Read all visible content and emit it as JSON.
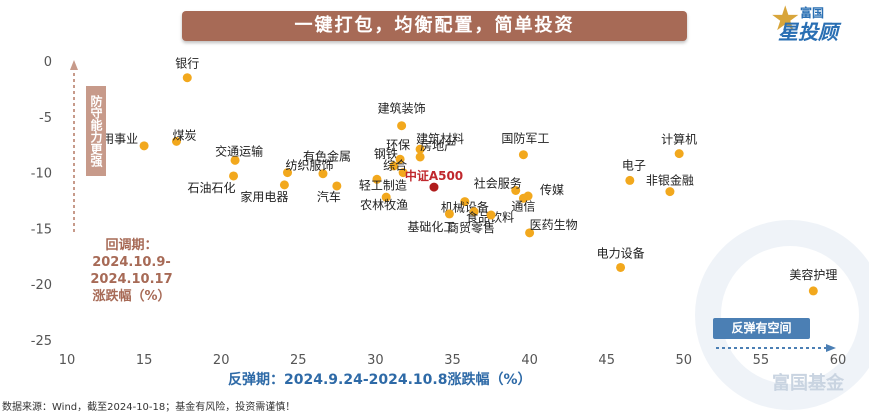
{
  "banner": {
    "title": "一键打包，均衡配置，简单投资"
  },
  "logo": {
    "line1": "富国",
    "line2": "星投顾"
  },
  "watermark": "富国基金",
  "y_axis_box": "防守能力更强",
  "y_axis_title": "回调期：2024.10.9-2024.10.17涨跌幅（%）",
  "x_axis_box": "反弹有空间",
  "x_axis_title": "反弹期：2024.9.24-2024.10.8涨跌幅（%）",
  "footer": "数据来源：Wind，截至2024-10-18；基金有风险，投资需谨慎！",
  "colors": {
    "point": "#f2a81d",
    "highlight": "#b01c1c",
    "highlight_label": "#c0282d",
    "banner": "#a76a56",
    "arrow": "#c79a8a",
    "x_arrow": "#4b7fb4"
  },
  "chart_data": {
    "type": "scatter",
    "xlim": [
      10,
      60
    ],
    "ylim": [
      -25,
      0
    ],
    "x_ticks": [
      10,
      15,
      20,
      25,
      30,
      35,
      40,
      45,
      50,
      55,
      60
    ],
    "y_ticks": [
      0,
      -5,
      -10,
      -15,
      -20,
      -25
    ],
    "grid": false,
    "points": [
      {
        "label": "银行",
        "x": 17.8,
        "y": -1.5
      },
      {
        "label": "建筑装饰",
        "x": 31.7,
        "y": -5.8
      },
      {
        "label": "建筑材料",
        "x": 32.9,
        "y": -7.9
      },
      {
        "label": "公用事业",
        "x": 15.0,
        "y": -7.6
      },
      {
        "label": "煤炭",
        "x": 17.1,
        "y": -7.2
      },
      {
        "label": "交通运输",
        "x": 20.9,
        "y": -8.9
      },
      {
        "label": "有色金属",
        "x": 26.6,
        "y": -10.1
      },
      {
        "label": "纺织服饰",
        "x": 24.3,
        "y": -10.0
      },
      {
        "label": "钢铁",
        "x": 31.2,
        "y": -9.4
      },
      {
        "label": "环保",
        "x": 31.6,
        "y": -8.8
      },
      {
        "label": "房地产",
        "x": 32.9,
        "y": -8.6
      },
      {
        "label": "综合",
        "x": 31.8,
        "y": -10.0
      },
      {
        "label": "国防军工",
        "x": 39.6,
        "y": -8.4
      },
      {
        "label": "计算机",
        "x": 49.7,
        "y": -8.3
      },
      {
        "label": "电子",
        "x": 46.5,
        "y": -10.7
      },
      {
        "label": "非银金融",
        "x": 49.1,
        "y": -11.7
      },
      {
        "label": "石油石化",
        "x": 20.8,
        "y": -10.3
      },
      {
        "label": "家用电器",
        "x": 24.1,
        "y": -11.1
      },
      {
        "label": "汽车",
        "x": 27.5,
        "y": -11.2
      },
      {
        "label": "轻工制造",
        "x": 30.1,
        "y": -10.6
      },
      {
        "label": "农林牧渔",
        "x": 30.7,
        "y": -12.2
      },
      {
        "label": "中证A500",
        "x": 33.8,
        "y": -11.3,
        "highlight": true
      },
      {
        "label": "社会服务",
        "x": 39.1,
        "y": -11.6
      },
      {
        "label": "传媒",
        "x": 39.9,
        "y": -12.1
      },
      {
        "label": "机械设备",
        "x": 35.8,
        "y": -12.6
      },
      {
        "label": "通信",
        "x": 39.6,
        "y": -12.3
      },
      {
        "label": "基础化工",
        "x": 34.8,
        "y": -13.7
      },
      {
        "label": "食品饮料",
        "x": 36.4,
        "y": -13.5
      },
      {
        "label": "商贸零售",
        "x": 37.5,
        "y": -13.8
      },
      {
        "label": "医药生物",
        "x": 40.0,
        "y": -15.4
      },
      {
        "label": "电力设备",
        "x": 45.9,
        "y": -18.5
      },
      {
        "label": "美容护理",
        "x": 58.4,
        "y": -20.6
      }
    ]
  }
}
